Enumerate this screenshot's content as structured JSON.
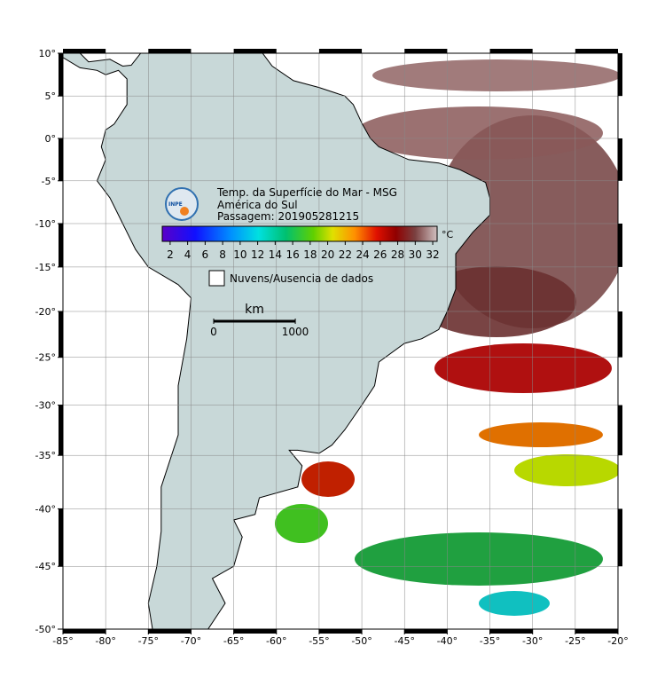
{
  "map": {
    "title": "Temp. da Superfície do Mar - MSG",
    "region": "América do Sul",
    "pass": "Passagem: 201905281215",
    "logo": "INPE",
    "projection": "mercator",
    "xlim": [
      -85,
      -20
    ],
    "ylim": [
      -50,
      10
    ],
    "grid": true,
    "xticks": [
      {
        "value": -85,
        "label": "-85°"
      },
      {
        "value": -80,
        "label": "-80°"
      },
      {
        "value": -75,
        "label": "-75°"
      },
      {
        "value": -70,
        "label": "-70°"
      },
      {
        "value": -65,
        "label": "-65°"
      },
      {
        "value": -60,
        "label": "-60°"
      },
      {
        "value": -55,
        "label": "-55°"
      },
      {
        "value": -50,
        "label": "-50°"
      },
      {
        "value": -45,
        "label": "-45°"
      },
      {
        "value": -40,
        "label": "-40°"
      },
      {
        "value": -35,
        "label": "-35°"
      },
      {
        "value": -30,
        "label": "-30°"
      },
      {
        "value": -25,
        "label": "-25°"
      },
      {
        "value": -20,
        "label": "-20°"
      }
    ],
    "yticks": [
      {
        "value": 10,
        "label": "10°"
      },
      {
        "value": 5,
        "label": "5°"
      },
      {
        "value": 0,
        "label": "0°"
      },
      {
        "value": -5,
        "label": "-5°"
      },
      {
        "value": -10,
        "label": "-10°"
      },
      {
        "value": -15,
        "label": "-15°"
      },
      {
        "value": -20,
        "label": "-20°"
      },
      {
        "value": -25,
        "label": "-25°"
      },
      {
        "value": -30,
        "label": "-30°"
      },
      {
        "value": -35,
        "label": "-35°"
      },
      {
        "value": -40,
        "label": "-40°"
      },
      {
        "value": -45,
        "label": "-45°"
      },
      {
        "value": -50,
        "label": "-50°"
      }
    ],
    "colorbar": {
      "unit": "°C",
      "range": [
        1.1,
        32.5
      ],
      "ticks": [
        2,
        4,
        6,
        8,
        10,
        12,
        14,
        16,
        18,
        20,
        22,
        24,
        26,
        28,
        30,
        32
      ]
    },
    "legend": "Nuvens/Ausencia de dados",
    "scale": {
      "unit": "km",
      "ticks": [
        0,
        1000
      ]
    }
  }
}
